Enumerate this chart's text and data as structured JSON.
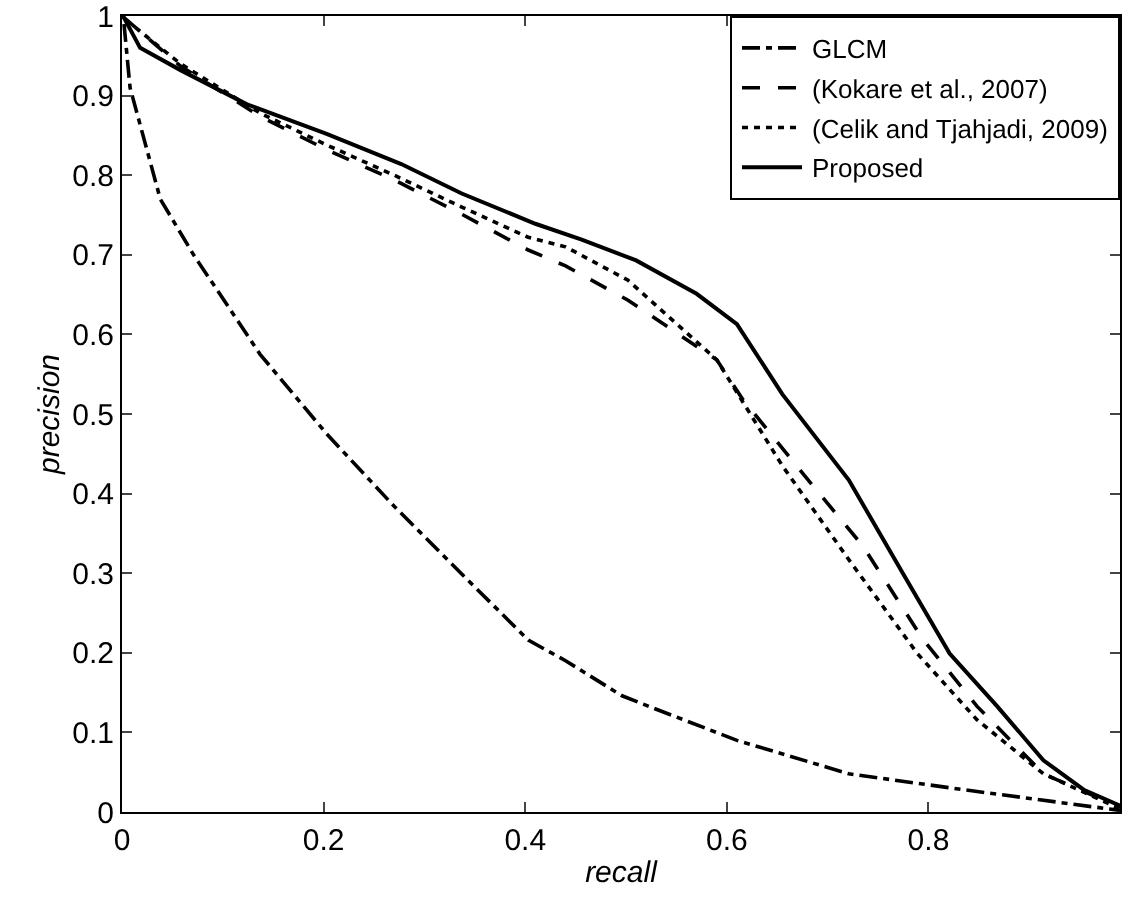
{
  "chart_data": {
    "type": "line",
    "xlabel": "recall",
    "ylabel": "precision",
    "xlim": [
      0,
      0.99
    ],
    "ylim": [
      0,
      1
    ],
    "xticks": [
      0,
      0.2,
      0.4,
      0.6,
      0.8
    ],
    "yticks": [
      0,
      0.1,
      0.2,
      0.3,
      0.4,
      0.5,
      0.6,
      0.7,
      0.8,
      0.9,
      1
    ],
    "legend": "top right",
    "series": [
      {
        "name": "GLCM",
        "color": "#000000",
        "line_style": "dashdot",
        "x": [
          0.002,
          0.008,
          0.038,
          0.071,
          0.137,
          0.203,
          0.27,
          0.337,
          0.403,
          0.44,
          0.496,
          0.522,
          0.61,
          0.721,
          0.835,
          0.99
        ],
        "values": [
          0.99,
          0.91,
          0.77,
          0.7,
          0.575,
          0.475,
          0.384,
          0.299,
          0.216,
          0.19,
          0.146,
          0.133,
          0.09,
          0.048,
          0.028,
          0.002
        ]
      },
      {
        "name": "(Kokare et al., 2007)",
        "color": "#000000",
        "line_style": "dashed",
        "x": [
          0,
          0.058,
          0.137,
          0.203,
          0.27,
          0.337,
          0.403,
          0.44,
          0.502,
          0.59,
          0.616,
          0.669,
          0.735,
          0.795,
          0.848,
          0.914,
          0.99
        ],
        "values": [
          1,
          0.937,
          0.874,
          0.832,
          0.794,
          0.751,
          0.706,
          0.686,
          0.643,
          0.568,
          0.518,
          0.435,
          0.334,
          0.216,
          0.133,
          0.048,
          0.006
        ]
      },
      {
        "name": "(Celik and Tjahjadi, 2009)",
        "color": "#000000",
        "line_style": "dotted",
        "x": [
          0.004,
          0.058,
          0.137,
          0.203,
          0.27,
          0.337,
          0.403,
          0.44,
          0.502,
          0.59,
          0.655,
          0.721,
          0.789,
          0.848,
          0.914,
          0.99
        ],
        "values": [
          0.995,
          0.94,
          0.878,
          0.838,
          0.8,
          0.76,
          0.722,
          0.71,
          0.668,
          0.568,
          0.435,
          0.317,
          0.199,
          0.116,
          0.048,
          0.004
        ]
      },
      {
        "name": "Proposed",
        "color": "#000000",
        "line_style": "solid",
        "x": [
          0.001,
          0.018,
          0.058,
          0.124,
          0.203,
          0.277,
          0.337,
          0.41,
          0.456,
          0.51,
          0.57,
          0.61,
          0.655,
          0.721,
          0.775,
          0.821,
          0.868,
          0.914,
          0.954,
          0.99
        ],
        "values": [
          1,
          0.96,
          0.932,
          0.889,
          0.852,
          0.814,
          0.777,
          0.739,
          0.719,
          0.693,
          0.651,
          0.613,
          0.525,
          0.417,
          0.299,
          0.199,
          0.133,
          0.065,
          0.028,
          0.008
        ]
      }
    ]
  }
}
